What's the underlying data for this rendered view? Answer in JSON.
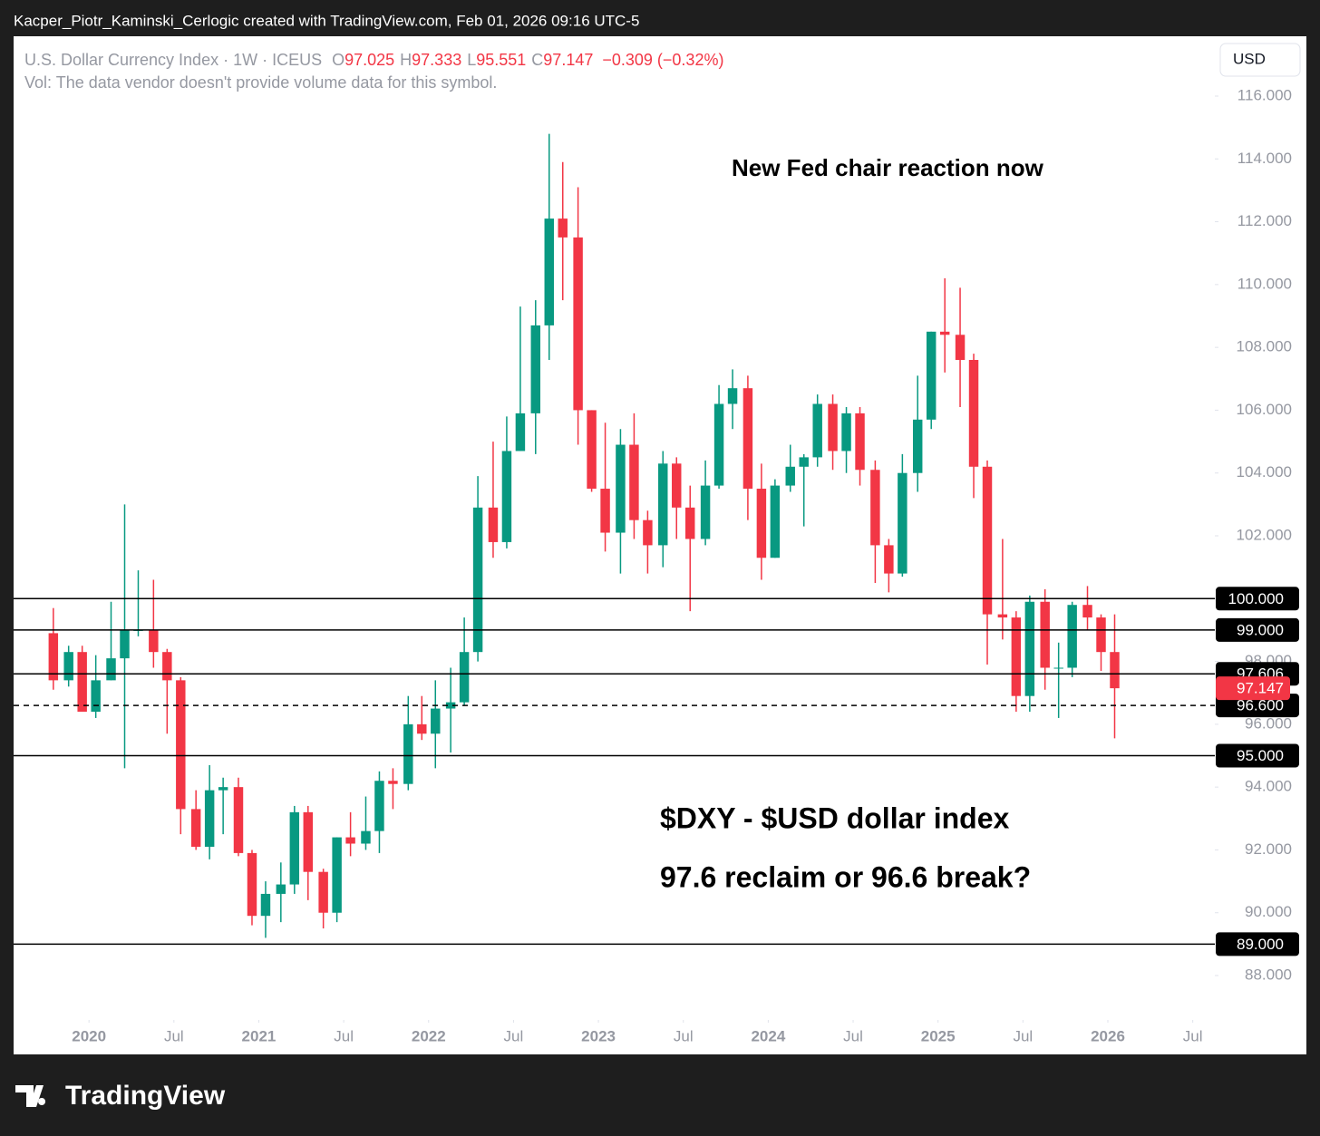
{
  "page": {
    "caption": "Kacper_Piotr_Kaminski_Cerlogic created with TradingView.com, Feb 01, 2026 09:16 UTC-5",
    "brand": "TradingView",
    "currency": "USD"
  },
  "chart_data": {
    "type": "candlestick",
    "symbol": "U.S. Dollar Currency Index · 1W · ICEUS",
    "ohlc_legend": [
      {
        "key": "O",
        "value": 97.025
      },
      {
        "key": "H",
        "value": 97.333
      },
      {
        "key": "L",
        "value": 95.551
      },
      {
        "key": "C",
        "value": 97.147
      }
    ],
    "change": "−0.309 (−0.32%)",
    "volume_note": "Vol: The data vendor doesn't provide volume data for this symbol.",
    "annotations": [
      "New Fed chair reaction now",
      "$DXY - $USD dollar index",
      "97.6 reclaim or 96.6 break?"
    ],
    "up_color": "#089981",
    "down_color": "#f23645",
    "x": [
      2019.79,
      2019.88,
      2019.96,
      2020.04,
      2020.13,
      2020.21,
      2020.29,
      2020.38,
      2020.46,
      2020.54,
      2020.63,
      2020.71,
      2020.79,
      2020.88,
      2020.96,
      2021.04,
      2021.13,
      2021.21,
      2021.29,
      2021.38,
      2021.46,
      2021.54,
      2021.63,
      2021.71,
      2021.79,
      2021.88,
      2021.96,
      2022.04,
      2022.13,
      2022.21,
      2022.29,
      2022.38,
      2022.46,
      2022.54,
      2022.63,
      2022.71,
      2022.79,
      2022.88,
      2022.96,
      2023.04,
      2023.13,
      2023.21,
      2023.29,
      2023.38,
      2023.46,
      2023.54,
      2023.63,
      2023.71,
      2023.79,
      2023.88,
      2023.96,
      2024.04,
      2024.13,
      2024.21,
      2024.29,
      2024.38,
      2024.46,
      2024.54,
      2024.63,
      2024.71,
      2024.79,
      2024.88,
      2024.96,
      2025.04,
      2025.13,
      2025.21,
      2025.29,
      2025.38,
      2025.46,
      2025.54,
      2025.63,
      2025.71,
      2025.79,
      2025.88,
      2025.96,
      2026.04
    ],
    "open": [
      98.9,
      97.4,
      98.3,
      96.4,
      97.4,
      98.1,
      99.0,
      99.0,
      98.3,
      97.4,
      93.3,
      92.1,
      93.9,
      94.0,
      91.9,
      89.9,
      90.6,
      90.9,
      93.2,
      91.3,
      90.0,
      92.4,
      92.2,
      92.6,
      94.2,
      94.1,
      96.0,
      95.7,
      96.5,
      96.7,
      98.3,
      102.9,
      101.8,
      104.7,
      105.9,
      108.7,
      112.1,
      111.5,
      106.0,
      103.5,
      102.1,
      104.9,
      102.5,
      101.7,
      104.3,
      102.9,
      101.9,
      103.6,
      106.2,
      106.7,
      103.5,
      101.3,
      103.6,
      104.2,
      104.5,
      106.2,
      104.7,
      105.9,
      104.1,
      101.7,
      100.8,
      104.0,
      105.7,
      108.5,
      108.4,
      107.6,
      104.2,
      99.5,
      99.4,
      96.9,
      99.9,
      97.8,
      97.8,
      99.8,
      99.4,
      98.3
    ],
    "high": [
      99.7,
      98.5,
      98.5,
      98.2,
      99.9,
      103.0,
      100.9,
      100.6,
      98.4,
      97.5,
      93.9,
      94.7,
      94.3,
      94.3,
      92.0,
      91.0,
      91.6,
      93.4,
      93.4,
      91.4,
      92.4,
      93.2,
      93.7,
      94.5,
      94.6,
      96.9,
      96.9,
      97.4,
      97.8,
      99.4,
      103.9,
      105.0,
      105.8,
      109.3,
      109.5,
      114.8,
      113.9,
      113.1,
      106.0,
      105.6,
      105.4,
      105.9,
      102.8,
      104.7,
      104.5,
      103.6,
      104.4,
      106.8,
      107.3,
      107.1,
      104.3,
      103.8,
      104.9,
      104.6,
      106.5,
      106.5,
      106.1,
      106.1,
      104.4,
      101.9,
      104.6,
      107.1,
      108.5,
      110.2,
      109.9,
      107.8,
      104.4,
      101.9,
      99.6,
      100.1,
      100.3,
      98.6,
      99.9,
      100.4,
      99.5,
      99.5
    ],
    "low": [
      97.1,
      97.2,
      96.4,
      96.2,
      97.4,
      94.6,
      98.8,
      97.8,
      95.7,
      92.5,
      92.0,
      91.7,
      92.5,
      91.8,
      89.6,
      89.2,
      89.7,
      90.6,
      90.4,
      89.5,
      89.7,
      91.8,
      92.0,
      91.9,
      93.3,
      93.9,
      95.5,
      94.6,
      95.1,
      96.6,
      98.0,
      101.3,
      101.6,
      104.7,
      104.6,
      107.6,
      109.5,
      104.9,
      103.4,
      101.5,
      100.8,
      101.9,
      100.8,
      101.0,
      101.9,
      99.6,
      101.7,
      103.5,
      105.4,
      102.5,
      100.6,
      101.3,
      103.4,
      102.3,
      104.2,
      104.1,
      104.0,
      103.6,
      100.5,
      100.2,
      100.7,
      103.4,
      105.4,
      107.2,
      106.1,
      103.2,
      97.9,
      98.7,
      96.4,
      96.4,
      97.1,
      96.2,
      97.5,
      99.0,
      97.7,
      95.551
    ],
    "close": [
      97.4,
      98.3,
      96.4,
      97.4,
      98.1,
      99.0,
      99.0,
      98.3,
      97.4,
      93.3,
      92.1,
      93.9,
      94.0,
      91.9,
      89.9,
      90.6,
      90.9,
      93.2,
      91.3,
      90.0,
      92.4,
      92.2,
      92.6,
      94.2,
      94.1,
      96.0,
      95.7,
      96.5,
      96.7,
      98.3,
      102.9,
      101.8,
      104.7,
      105.9,
      108.7,
      112.1,
      111.5,
      106.0,
      103.5,
      102.1,
      104.9,
      102.5,
      101.7,
      104.3,
      102.9,
      101.9,
      103.6,
      106.2,
      106.7,
      103.5,
      101.3,
      103.6,
      104.2,
      104.5,
      106.2,
      104.7,
      105.9,
      104.1,
      101.7,
      100.8,
      104.0,
      105.7,
      108.5,
      108.4,
      107.6,
      104.2,
      99.5,
      99.4,
      96.9,
      99.9,
      97.8,
      97.8,
      99.8,
      99.4,
      98.3,
      97.147
    ],
    "levels": [
      {
        "value": 100,
        "label": "100.000",
        "style": "solid"
      },
      {
        "value": 99,
        "label": "99.000",
        "style": "solid"
      },
      {
        "value": 97.606,
        "style": "solid"
      },
      {
        "value": 96.6,
        "label": "96.600",
        "style": "dashed"
      },
      {
        "value": 95,
        "label": "95.000",
        "style": "solid"
      },
      {
        "value": 89,
        "label": "89.000",
        "style": "solid"
      }
    ],
    "last_price": 97.147,
    "xlim": [
      2019.556,
      2026.63
    ],
    "xticks": [
      2020,
      {
        "value": 2020.5,
        "label": "Jul"
      },
      2021,
      {
        "value": 2021.5,
        "label": "Jul"
      },
      2022,
      {
        "value": 2022.5,
        "label": "Jul"
      },
      2023,
      {
        "value": 2023.5,
        "label": "Jul"
      },
      2024,
      {
        "value": 2024.5,
        "label": "Jul"
      },
      2025,
      {
        "value": 2025.5,
        "label": "Jul"
      },
      2026,
      {
        "value": 2026.5,
        "label": "Jul"
      }
    ],
    "ylim": [
      86.586,
      117.905
    ],
    "yticks": [
      {
        "value": 88,
        "label": "88.000"
      },
      {
        "value": 90,
        "label": "90.000"
      },
      {
        "value": 92,
        "label": "92.000"
      },
      {
        "value": 94,
        "label": "94.000"
      },
      {
        "value": 96,
        "label": "96.000"
      },
      {
        "value": 98,
        "label": "98.000"
      },
      {
        "value": 100,
        "label": "100.000"
      },
      {
        "value": 102,
        "label": "102.000"
      },
      {
        "value": 104,
        "label": "104.000"
      },
      {
        "value": 106,
        "label": "106.000"
      },
      {
        "value": 108,
        "label": "108.000"
      },
      {
        "value": 110,
        "label": "110.000"
      },
      {
        "value": 112,
        "label": "112.000"
      },
      {
        "value": 114,
        "label": "114.000"
      },
      {
        "value": 116,
        "label": "116.000"
      }
    ]
  }
}
